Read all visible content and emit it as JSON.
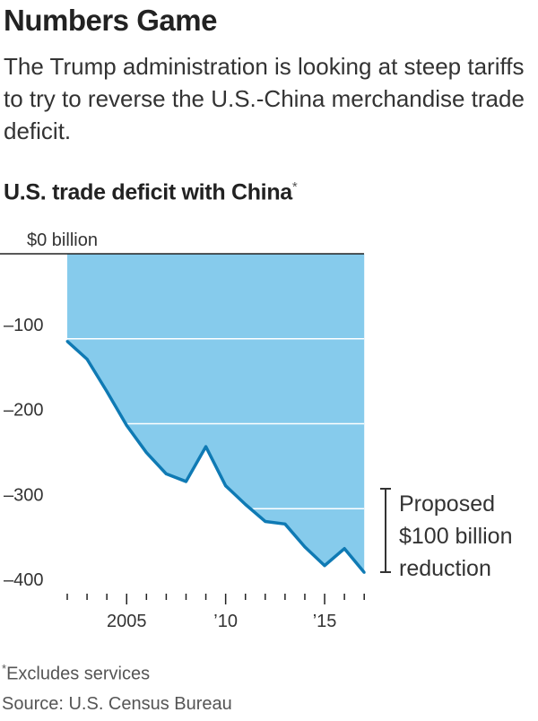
{
  "headline": "Numbers Game",
  "dek": "The Trump administration is looking at steep tariffs to try to reverse the U.S.-China merchandise trade deficit.",
  "footnote": "Excludes services",
  "source": "Source: U.S. Census Bureau",
  "annotation": {
    "lines": [
      "Proposed",
      "$100 billion",
      "reduction"
    ]
  },
  "colors": {
    "fill": "#86cbec",
    "line": "#0f7ab4",
    "grid": "#ffffff",
    "zero_line": "#222222",
    "text": "#333333"
  },
  "chart_data": {
    "type": "area",
    "title": "U.S. trade deficit with China",
    "title_mark": "*",
    "y_tick_labels": [
      "$0 billion",
      "–100",
      "–200",
      "–300",
      "–400"
    ],
    "y_ticks": [
      0,
      -100,
      -200,
      -300,
      -400
    ],
    "x_tick_labels": [
      {
        "year": 2005,
        "label": "2005"
      },
      {
        "year": 2010,
        "label": "’10"
      },
      {
        "year": 2015,
        "label": "’15"
      }
    ],
    "xlim": [
      2001,
      2017
    ],
    "ylim": [
      -420,
      0
    ],
    "grid": true,
    "x": [
      2002,
      2003,
      2004,
      2005,
      2006,
      2007,
      2008,
      2009,
      2010,
      2011,
      2012,
      2013,
      2014,
      2015,
      2016,
      2017
    ],
    "values": [
      -103,
      -124,
      -162,
      -202,
      -234,
      -259,
      -268,
      -227,
      -273,
      -295,
      -315,
      -318,
      -345,
      -367,
      -347,
      -375
    ]
  }
}
